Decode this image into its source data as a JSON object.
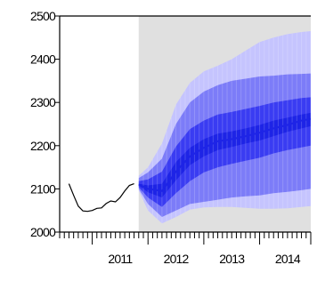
{
  "chart_data": {
    "type": "area",
    "title": "",
    "xlabel": "",
    "ylabel": "",
    "ylim": [
      2000,
      2500
    ],
    "y_ticks": [
      2000,
      2100,
      2200,
      2300,
      2400,
      2500
    ],
    "y_tick_labels": [
      "2000",
      "2100",
      "2200",
      "2300",
      "2400",
      "2500"
    ],
    "x_range": [
      "2010-06",
      "2014-12"
    ],
    "x_year_labels": [
      {
        "label": "2011",
        "at": "2011-07"
      },
      {
        "label": "2012",
        "at": "2012-07"
      },
      {
        "label": "2013",
        "at": "2013-07"
      },
      {
        "label": "2014",
        "at": "2014-07"
      }
    ],
    "forecast_start": "2011-11",
    "grid": false,
    "legend": "none",
    "colors": {
      "history_line": "#000000",
      "median_line": "#1e24e6",
      "band_inner": "#3a3cf2",
      "band_middle": "#7c7cf8",
      "band_outer": "#c5c4fe",
      "shaded_region": "#e0e0e0"
    },
    "series": [
      {
        "role": "history",
        "x": [
          "2010-08",
          "2010-09",
          "2010-10",
          "2010-11",
          "2010-12",
          "2011-01",
          "2011-02",
          "2011-03",
          "2011-04",
          "2011-05",
          "2011-06",
          "2011-07",
          "2011-08",
          "2011-09",
          "2011-10"
        ],
        "values": [
          2112,
          2085,
          2060,
          2049,
          2048,
          2050,
          2055,
          2056,
          2066,
          2072,
          2070,
          2080,
          2095,
          2108,
          2112
        ]
      },
      {
        "role": "forecast-median",
        "x": [
          "2011-11",
          "2012-01",
          "2012-04",
          "2012-07",
          "2012-10",
          "2013-01",
          "2013-04",
          "2013-07",
          "2013-10",
          "2014-01",
          "2014-04",
          "2014-07",
          "2014-10",
          "2014-12"
        ],
        "values": [
          2110,
          2100,
          2095,
          2140,
          2175,
          2195,
          2210,
          2215,
          2222,
          2230,
          2240,
          2248,
          2258,
          2262
        ]
      },
      {
        "role": "band-inner",
        "x": [
          "2011-11",
          "2012-01",
          "2012-04",
          "2012-07",
          "2012-10",
          "2013-01",
          "2013-04",
          "2013-07",
          "2013-10",
          "2014-01",
          "2014-04",
          "2014-07",
          "2014-10",
          "2014-12"
        ],
        "lower": [
          2108,
          2092,
          2080,
          2120,
          2155,
          2175,
          2190,
          2197,
          2205,
          2212,
          2222,
          2232,
          2240,
          2245
        ],
        "upper": [
          2112,
          2108,
          2112,
          2162,
          2195,
          2215,
          2228,
          2233,
          2240,
          2248,
          2258,
          2265,
          2272,
          2276
        ]
      },
      {
        "role": "band-middle",
        "x": [
          "2011-11",
          "2012-01",
          "2012-04",
          "2012-07",
          "2012-10",
          "2013-01",
          "2013-04",
          "2013-07",
          "2013-10",
          "2014-01",
          "2014-04",
          "2014-07",
          "2014-10",
          "2014-12"
        ],
        "lower": [
          2104,
          2080,
          2058,
          2090,
          2118,
          2138,
          2150,
          2158,
          2165,
          2172,
          2182,
          2190,
          2196,
          2200
        ],
        "upper": [
          2118,
          2122,
          2140,
          2198,
          2238,
          2258,
          2272,
          2278,
          2285,
          2292,
          2300,
          2305,
          2310,
          2312
        ]
      },
      {
        "role": "band-outer",
        "x": [
          "2011-11",
          "2012-01",
          "2012-04",
          "2012-07",
          "2012-10",
          "2013-01",
          "2013-04",
          "2013-07",
          "2013-10",
          "2014-01",
          "2014-04",
          "2014-07",
          "2014-10",
          "2014-12"
        ],
        "lower": [
          2100,
          2065,
          2035,
          2050,
          2065,
          2070,
          2075,
          2080,
          2083,
          2085,
          2090,
          2093,
          2097,
          2100
        ],
        "upper": [
          2125,
          2138,
          2170,
          2250,
          2300,
          2325,
          2340,
          2350,
          2355,
          2360,
          2362,
          2365,
          2366,
          2367
        ]
      },
      {
        "role": "band-outermost",
        "x": [
          "2011-11",
          "2012-01",
          "2012-04",
          "2012-07",
          "2012-10",
          "2013-01",
          "2013-04",
          "2013-07",
          "2013-10",
          "2014-01",
          "2014-04",
          "2014-07",
          "2014-10",
          "2014-12"
        ],
        "lower": [
          2096,
          2050,
          2020,
          2035,
          2052,
          2057,
          2058,
          2058,
          2056,
          2054,
          2054,
          2055,
          2058,
          2060
        ],
        "upper": [
          2130,
          2150,
          2205,
          2295,
          2345,
          2372,
          2385,
          2400,
          2420,
          2440,
          2450,
          2458,
          2463,
          2465
        ]
      }
    ]
  }
}
